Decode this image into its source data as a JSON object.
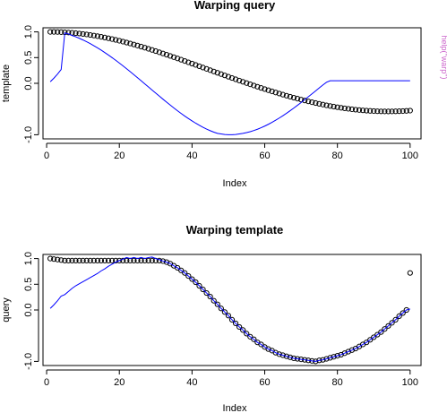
{
  "chart_data": [
    {
      "type": "scatter",
      "title": "Warping query",
      "xlabel": "Index",
      "ylabel": "template",
      "xlim": [
        -1,
        103
      ],
      "ylim": [
        -1.08,
        1.08
      ],
      "xticks": [
        0,
        20,
        40,
        60,
        80,
        100
      ],
      "yticks": [
        -1.0,
        0.0,
        0.5,
        1.0
      ],
      "ytick_labels": [
        "-1.0",
        "0.0",
        "0.5",
        "1.0"
      ],
      "grid": false,
      "legend": "none",
      "side_note": "help(\"warp\")",
      "colors": {
        "points": "#000000",
        "line": "#0000ff",
        "note": "#cc66cc"
      },
      "series": [
        {
          "kind": "points",
          "x": [
            1,
            2,
            3,
            4,
            5,
            6,
            7,
            8,
            9,
            10,
            11,
            12,
            13,
            14,
            15,
            16,
            17,
            18,
            19,
            20,
            21,
            22,
            23,
            24,
            25,
            26,
            27,
            28,
            29,
            30,
            31,
            32,
            33,
            34,
            35,
            36,
            37,
            38,
            39,
            40,
            41,
            42,
            43,
            44,
            45,
            46,
            47,
            48,
            49,
            50,
            51,
            52,
            53,
            54,
            55,
            56,
            57,
            58,
            59,
            60,
            61,
            62,
            63,
            64,
            65,
            66,
            67,
            68,
            69,
            70,
            71,
            72,
            73,
            74,
            75,
            76,
            77,
            78,
            79,
            80,
            81,
            82,
            83,
            84,
            85,
            86,
            87,
            88,
            89,
            90,
            91,
            92,
            93,
            94,
            95,
            96,
            97,
            98,
            99,
            100
          ],
          "y": [
            1.0,
            0.9995,
            0.998,
            0.9955,
            0.992,
            0.9874,
            0.9819,
            0.9753,
            0.9679,
            0.9595,
            0.9501,
            0.9399,
            0.9288,
            0.9168,
            0.904,
            0.8904,
            0.8759,
            0.8607,
            0.8447,
            0.828,
            0.8106,
            0.7925,
            0.7737,
            0.7543,
            0.7343,
            0.7138,
            0.6927,
            0.6711,
            0.649,
            0.6265,
            0.6036,
            0.5802,
            0.5565,
            0.5325,
            0.5082,
            0.4836,
            0.4588,
            0.4338,
            0.4086,
            0.3833,
            0.3578,
            0.3323,
            0.3067,
            0.2811,
            0.2555,
            0.23,
            0.2044,
            0.179,
            0.1536,
            0.1284,
            0.1033,
            0.0784,
            0.0537,
            0.0292,
            0.0049,
            -0.0191,
            -0.0428,
            -0.0662,
            -0.0893,
            -0.1121,
            -0.1345,
            -0.1565,
            -0.1781,
            -0.1993,
            -0.2201,
            -0.2404,
            -0.2602,
            -0.2795,
            -0.2983,
            -0.3166,
            -0.3343,
            -0.3514,
            -0.3679,
            -0.3838,
            -0.399,
            -0.4136,
            -0.4275,
            -0.4407,
            -0.4532,
            -0.465,
            -0.476,
            -0.4863,
            -0.4958,
            -0.5045,
            -0.5125,
            -0.5196,
            -0.5259,
            -0.5314,
            -0.5361,
            -0.5399,
            -0.5429,
            -0.545,
            -0.5463,
            -0.5467,
            -0.5462,
            -0.5449,
            -0.5427,
            -0.5396,
            -0.5357,
            -0.5309
          ]
        },
        {
          "kind": "line",
          "x": [
            1,
            2,
            3,
            4,
            5,
            6,
            7,
            8,
            9,
            10,
            11,
            12,
            13,
            14,
            15,
            16,
            17,
            18,
            19,
            20,
            21,
            22,
            23,
            24,
            25,
            26,
            27,
            28,
            29,
            30,
            31,
            32,
            33,
            34,
            35,
            36,
            37,
            38,
            39,
            40,
            41,
            42,
            43,
            44,
            45,
            46,
            47,
            48,
            49,
            50,
            51,
            52,
            53,
            54,
            55,
            56,
            57,
            58,
            59,
            60,
            61,
            62,
            63,
            64,
            65,
            66,
            67,
            68,
            69,
            70,
            71,
            72,
            73,
            74,
            75,
            76,
            77,
            78,
            79,
            80,
            81,
            82,
            83,
            84,
            85,
            86,
            87,
            88,
            89,
            90,
            91,
            92,
            93,
            94,
            95,
            96,
            97,
            98,
            99,
            100
          ],
          "y": [
            0.03,
            0.1,
            0.18,
            0.27,
            0.98,
            0.96,
            0.93,
            0.905,
            0.875,
            0.843,
            0.808,
            0.771,
            0.731,
            0.689,
            0.645,
            0.598,
            0.55,
            0.5,
            0.448,
            0.394,
            0.339,
            0.283,
            0.226,
            0.168,
            0.109,
            0.05,
            -0.01,
            -0.07,
            -0.13,
            -0.189,
            -0.249,
            -0.308,
            -0.366,
            -0.423,
            -0.479,
            -0.533,
            -0.586,
            -0.637,
            -0.685,
            -0.731,
            -0.775,
            -0.816,
            -0.854,
            -0.889,
            -0.921,
            -0.949,
            -0.973,
            -0.984,
            -0.995,
            -1.0,
            -1.0,
            -0.995,
            -0.984,
            -0.973,
            -0.958,
            -0.94,
            -0.918,
            -0.893,
            -0.864,
            -0.832,
            -0.797,
            -0.759,
            -0.718,
            -0.675,
            -0.63,
            -0.582,
            -0.532,
            -0.481,
            -0.428,
            -0.374,
            -0.318,
            -0.262,
            -0.205,
            -0.148,
            -0.09,
            -0.032,
            0.02,
            0.05,
            0.05,
            0.05,
            0.05,
            0.05,
            0.05,
            0.05,
            0.05,
            0.05,
            0.05,
            0.05,
            0.05,
            0.05,
            0.05,
            0.05,
            0.05,
            0.05,
            0.05,
            0.05,
            0.05,
            0.05,
            0.05,
            0.05
          ]
        }
      ]
    },
    {
      "type": "scatter",
      "title": "Warping template",
      "xlabel": "Index",
      "ylabel": "query",
      "xlim": [
        -1,
        103
      ],
      "ylim": [
        -1.08,
        1.08
      ],
      "xticks": [
        0,
        20,
        40,
        60,
        80,
        100
      ],
      "yticks": [
        -1.0,
        0.0,
        0.5,
        1.0
      ],
      "ytick_labels": [
        "-1.0",
        "0.0",
        "0.5",
        "1.0"
      ],
      "grid": false,
      "legend": "none",
      "colors": {
        "points": "#000000",
        "line": "#0000ff"
      },
      "series": [
        {
          "kind": "points",
          "x": [
            1,
            2,
            3,
            4,
            5,
            6,
            7,
            8,
            9,
            10,
            11,
            12,
            13,
            14,
            15,
            16,
            17,
            18,
            19,
            20,
            21,
            22,
            23,
            24,
            25,
            26,
            27,
            28,
            29,
            30,
            31,
            32,
            33,
            34,
            35,
            36,
            37,
            38,
            39,
            40,
            41,
            42,
            43,
            44,
            45,
            46,
            47,
            48,
            49,
            50,
            51,
            52,
            53,
            54,
            55,
            56,
            57,
            58,
            59,
            60,
            61,
            62,
            63,
            64,
            65,
            66,
            67,
            68,
            69,
            70,
            71,
            72,
            73,
            74,
            75,
            76,
            77,
            78,
            79,
            80,
            81,
            82,
            83,
            84,
            85,
            86,
            87,
            88,
            89,
            90,
            91,
            92,
            93,
            94,
            95,
            96,
            97,
            98,
            99,
            100
          ],
          "y": [
            1.0,
            0.99,
            0.98,
            0.97,
            0.96,
            0.96,
            0.96,
            0.96,
            0.96,
            0.96,
            0.96,
            0.96,
            0.96,
            0.96,
            0.96,
            0.96,
            0.96,
            0.96,
            0.96,
            0.96,
            0.96,
            0.96,
            0.96,
            0.96,
            0.96,
            0.96,
            0.96,
            0.96,
            0.96,
            0.96,
            0.96,
            0.95,
            0.93,
            0.9,
            0.86,
            0.82,
            0.77,
            0.72,
            0.66,
            0.6,
            0.54,
            0.47,
            0.4,
            0.33,
            0.26,
            0.18,
            0.11,
            0.03,
            -0.04,
            -0.11,
            -0.19,
            -0.26,
            -0.33,
            -0.39,
            -0.46,
            -0.52,
            -0.57,
            -0.63,
            -0.67,
            -0.72,
            -0.76,
            -0.79,
            -0.83,
            -0.86,
            -0.88,
            -0.9,
            -0.92,
            -0.94,
            -0.95,
            -0.96,
            -0.97,
            -0.98,
            -0.99,
            -1.0,
            -0.98,
            -0.97,
            -0.95,
            -0.93,
            -0.91,
            -0.89,
            -0.87,
            -0.84,
            -0.81,
            -0.78,
            -0.75,
            -0.71,
            -0.67,
            -0.63,
            -0.58,
            -0.53,
            -0.48,
            -0.43,
            -0.37,
            -0.31,
            -0.25,
            -0.19,
            -0.12,
            -0.06,
            0.0,
            0.72
          ]
        },
        {
          "kind": "line",
          "x": [
            1,
            2,
            3,
            4,
            5,
            6,
            7,
            8,
            9,
            10,
            11,
            12,
            13,
            14,
            15,
            16,
            17,
            18,
            19,
            20,
            21,
            22,
            23,
            24,
            25,
            26,
            27,
            28,
            29,
            30,
            31,
            32,
            33,
            34,
            35,
            36,
            37,
            38,
            39,
            40,
            41,
            42,
            43,
            44,
            45,
            46,
            47,
            48,
            49,
            50,
            51,
            52,
            53,
            54,
            55,
            56,
            57,
            58,
            59,
            60,
            61,
            62,
            63,
            64,
            65,
            66,
            67,
            68,
            69,
            70,
            71,
            72,
            73,
            74,
            75,
            76,
            77,
            78,
            79,
            80,
            81,
            82,
            83,
            84,
            85,
            86,
            87,
            88,
            89,
            90,
            91,
            92,
            93,
            94,
            95,
            96,
            97,
            98,
            99,
            100
          ],
          "y": [
            0.03,
            0.1,
            0.18,
            0.27,
            0.3,
            0.36,
            0.42,
            0.47,
            0.51,
            0.55,
            0.59,
            0.63,
            0.67,
            0.71,
            0.76,
            0.8,
            0.85,
            0.89,
            0.93,
            0.96,
            0.99,
            1.02,
            1.0,
            1.02,
            1.0,
            1.02,
            1.0,
            1.02,
            1.03,
            1.0,
            0.98,
            0.95,
            0.93,
            0.9,
            0.86,
            0.82,
            0.77,
            0.72,
            0.66,
            0.6,
            0.54,
            0.47,
            0.4,
            0.33,
            0.26,
            0.18,
            0.11,
            0.03,
            -0.04,
            -0.11,
            -0.19,
            -0.26,
            -0.33,
            -0.39,
            -0.46,
            -0.52,
            -0.57,
            -0.63,
            -0.67,
            -0.72,
            -0.76,
            -0.79,
            -0.83,
            -0.86,
            -0.88,
            -0.9,
            -0.92,
            -0.94,
            -0.95,
            -0.96,
            -0.97,
            -0.98,
            -0.99,
            -1.0,
            -0.98,
            -0.97,
            -0.95,
            -0.93,
            -0.91,
            -0.89,
            -0.87,
            -0.84,
            -0.81,
            -0.78,
            -0.75,
            -0.71,
            -0.67,
            -0.63,
            -0.58,
            -0.53,
            -0.48,
            -0.43,
            -0.37,
            -0.31,
            -0.25,
            -0.19,
            -0.12,
            -0.06,
            0.0,
            0.02
          ]
        }
      ]
    }
  ]
}
